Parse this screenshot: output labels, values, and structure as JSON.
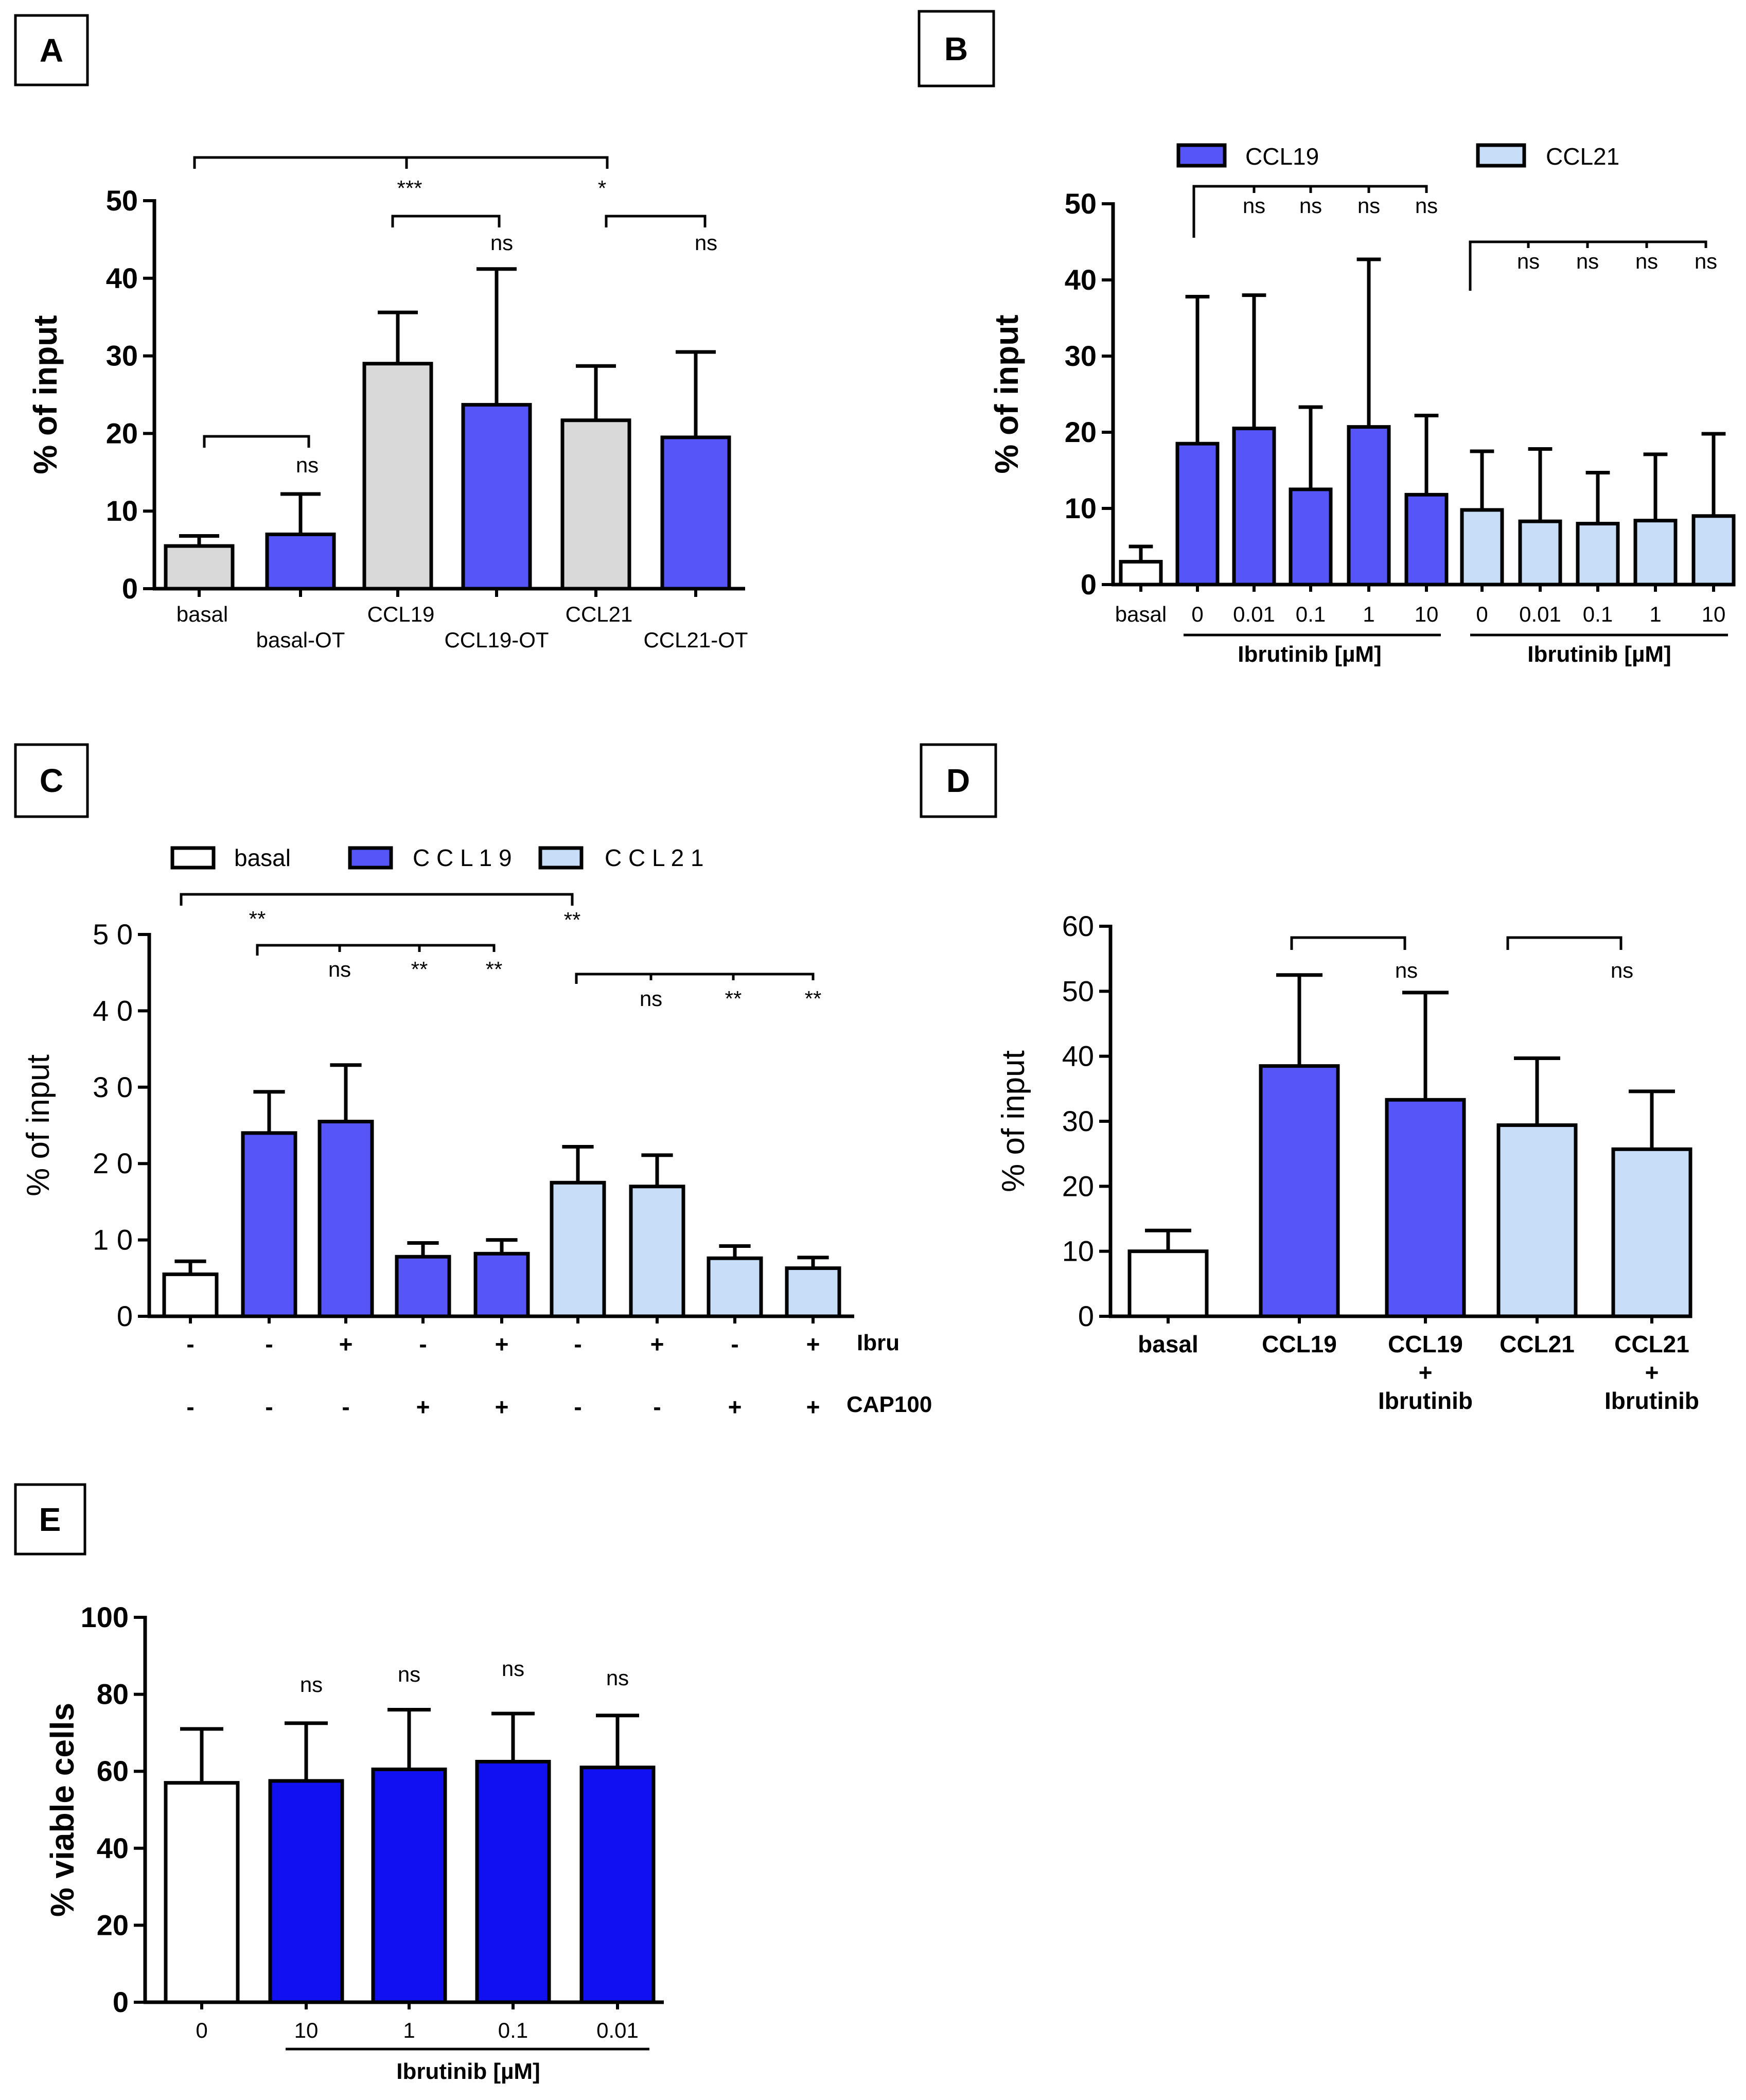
{
  "colors": {
    "gray": "#d9d9d9",
    "blue": "#5656f8",
    "lightblue": "#c8ddf8",
    "white": "#ffffff",
    "darkblue": "#1010f0"
  },
  "chart_data": [
    {
      "panel": "A",
      "type": "bar",
      "ylabel": "% of input",
      "ylim": [
        0,
        50
      ],
      "yticks": [
        "0",
        "10",
        "20",
        "30",
        "40",
        "50"
      ],
      "categories": [
        "basal",
        "basal-OT",
        "CCL19",
        "CCL19-OT",
        "CCL21",
        "CCL21-OT"
      ],
      "values": [
        5.5,
        7,
        29,
        23.7,
        21.7,
        19.5
      ],
      "errors": [
        1.3,
        5.2,
        6.6,
        17.5,
        7,
        11
      ],
      "colors": [
        "gray",
        "blue",
        "gray",
        "blue",
        "gray",
        "blue"
      ],
      "brackets": [
        {
          "from": 0,
          "to": 1,
          "y": 20,
          "labels": [
            {
              "at": 1,
              "text": "ns"
            }
          ]
        },
        {
          "from": 2,
          "to": 3,
          "y": 47,
          "labels": [
            {
              "at": 3,
              "text": "ns"
            }
          ]
        },
        {
          "from": 4,
          "to": 5,
          "y": 47,
          "labels": [
            {
              "at": 5,
              "text": "ns"
            }
          ]
        },
        {
          "from": 0,
          "to": 4,
          "y": 55,
          "stem": 2,
          "labels": [
            {
              "at": 2,
              "text": "***"
            },
            {
              "at": 4,
              "text": "*"
            }
          ]
        }
      ]
    },
    {
      "panel": "B",
      "type": "bar",
      "ylabel": "% of input",
      "ylim": [
        0,
        50
      ],
      "yticks": [
        "0",
        "10",
        "20",
        "30",
        "40",
        "50"
      ],
      "legend": [
        "CCL19",
        "CCL21"
      ],
      "categories": [
        "basal",
        "0",
        "0.01",
        "0.1",
        "1",
        "10",
        "0",
        "0.01",
        "0.1",
        "1",
        "10"
      ],
      "group_labels": [
        "Ibrutinib [µM]",
        "Ibrutinib [µM]"
      ],
      "values": [
        3,
        18.5,
        20.5,
        12.5,
        20.7,
        11.8,
        9.8,
        8.3,
        8,
        8.4,
        9
      ],
      "errors": [
        2,
        19.3,
        17.5,
        10.8,
        22,
        10.4,
        7.7,
        9.5,
        6.7,
        8.7,
        10.8
      ],
      "colors": [
        "white",
        "blue",
        "blue",
        "blue",
        "blue",
        "blue",
        "lightblue",
        "lightblue",
        "lightblue",
        "lightblue",
        "lightblue"
      ],
      "sig_ccl19": [
        "ns",
        "ns",
        "ns",
        "ns"
      ],
      "sig_ccl21": [
        "ns",
        "ns",
        "ns",
        "ns"
      ]
    },
    {
      "panel": "C",
      "type": "bar",
      "ylabel": "% of input",
      "ylim": [
        0,
        50
      ],
      "yticks": [
        "0",
        "1 0",
        "2 0",
        "3 0",
        "4 0",
        "5 0"
      ],
      "legend": [
        "basal",
        "C C L 1 9",
        "C C L 2 1"
      ],
      "values": [
        5.5,
        24,
        25.5,
        7.8,
        8.2,
        17.5,
        17,
        7.6,
        6.3
      ],
      "errors": [
        1.7,
        5.4,
        7.4,
        1.8,
        1.8,
        4.7,
        4.1,
        1.6,
        1.4
      ],
      "colors": [
        "white",
        "blue",
        "blue",
        "blue",
        "blue",
        "lightblue",
        "lightblue",
        "lightblue",
        "lightblue"
      ],
      "row_labels": [
        "Ibru",
        "CAP100"
      ],
      "ibru": [
        "-",
        "-",
        "+",
        "-",
        "+",
        "-",
        "+",
        "-",
        "+"
      ],
      "cap100": [
        "-",
        "-",
        "-",
        "+",
        "+",
        "-",
        "-",
        "+",
        "+"
      ],
      "top_sig": [
        "**",
        "**"
      ],
      "sig_ccl19": [
        "ns",
        "**",
        "**"
      ],
      "sig_ccl21": [
        "ns",
        "**",
        "**"
      ]
    },
    {
      "panel": "D",
      "type": "bar",
      "ylabel": "% of input",
      "ylim": [
        0,
        60
      ],
      "yticks": [
        "0",
        "10",
        "20",
        "30",
        "40",
        "50",
        "60"
      ],
      "categories": [
        [
          "basal"
        ],
        [
          "CCL19"
        ],
        [
          "CCL19",
          "+",
          "Ibrutinib"
        ],
        [
          "CCL21"
        ],
        [
          "CCL21",
          "+",
          "Ibrutinib"
        ]
      ],
      "values": [
        10,
        38.5,
        33.3,
        29.4,
        25.7
      ],
      "errors": [
        3.2,
        14,
        16.5,
        10.3,
        8.9
      ],
      "colors": [
        "white",
        "blue",
        "blue",
        "lightblue",
        "lightblue"
      ],
      "sig": [
        "ns",
        "ns"
      ]
    },
    {
      "panel": "E",
      "type": "bar",
      "ylabel": "% viable cells",
      "ylim": [
        0,
        100
      ],
      "yticks": [
        "0",
        "20",
        "40",
        "60",
        "80",
        "100"
      ],
      "categories": [
        "0",
        "10",
        "1",
        "0.1",
        "0.01"
      ],
      "group_label": "Ibrutinib [µM]",
      "values": [
        57,
        57.5,
        60.5,
        62.5,
        61
      ],
      "errors": [
        14,
        15,
        15.5,
        12.5,
        13.5
      ],
      "colors": [
        "white",
        "darkblue",
        "darkblue",
        "darkblue",
        "darkblue"
      ],
      "sig": [
        "ns",
        "ns",
        "ns",
        "ns"
      ]
    }
  ]
}
